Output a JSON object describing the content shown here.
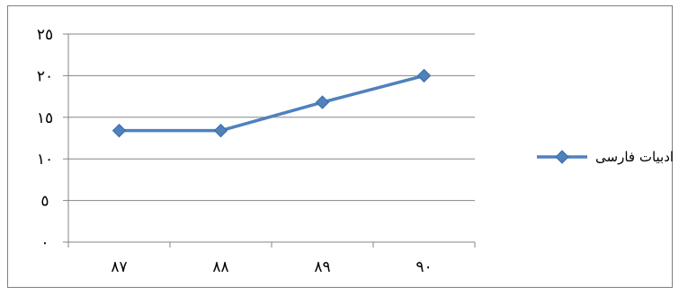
{
  "chart_data": {
    "type": "line",
    "categories": [
      "٨٧",
      "٨٨",
      "٨٩",
      "٩٠"
    ],
    "y_tick_labels": [
      "٠",
      "٥",
      "١٠",
      "١٥",
      "٢٠",
      "٢٥"
    ],
    "y_tick_values": [
      0,
      5,
      10,
      15,
      20,
      25
    ],
    "ylim": [
      0,
      25
    ],
    "grid": "horizontal",
    "legend_position": "right",
    "series": [
      {
        "name": "ادبیات فارسی",
        "color": "#4F81BD",
        "marker": "diamond",
        "values": [
          13.4,
          13.4,
          16.8,
          20
        ]
      }
    ]
  }
}
